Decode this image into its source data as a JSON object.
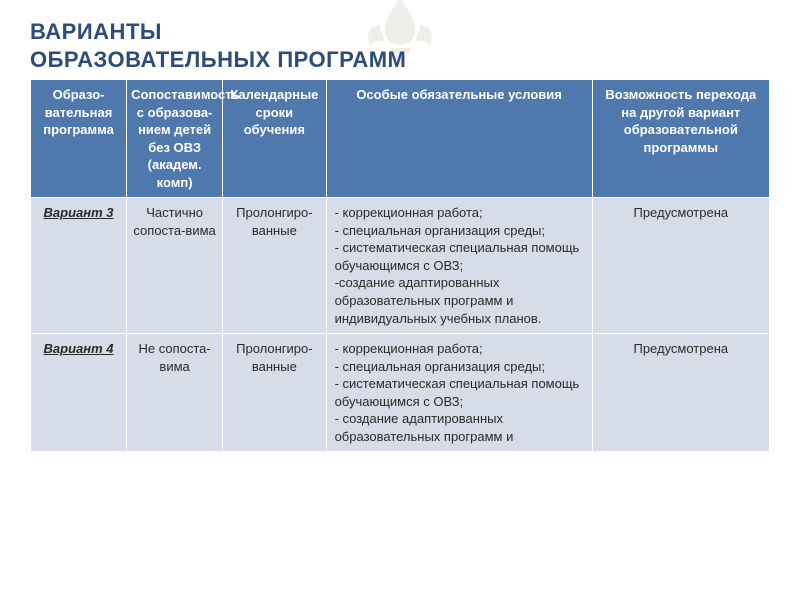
{
  "title_line1": "ВАРИАНТЫ",
  "title_line2": "ОБРАЗОВАТЕЛЬНЫХ ПРОГРАММ",
  "title_color": "#2b4d78",
  "table": {
    "header_bg": "#4f78ad",
    "header_text_color": "#ffffff",
    "body_bg": "#d6dde8",
    "border_color": "#ffffff",
    "col_widths_pct": [
      13,
      13,
      14,
      36,
      24
    ],
    "columns": [
      "Образо-вательная программа",
      "Сопоставимость с образова-нием детей без ОВЗ (академ. комп)",
      "Календарные сроки обучения",
      "Особые обязательные условия",
      "Возможность перехода на другой вариант образовательной программы"
    ],
    "rows": [
      {
        "label": "Вариант 3",
        "comparability": "Частично сопоста-вима",
        "terms": "Пролонгиро-ванные",
        "conditions": [
          "- коррекционная работа;",
          "- специальная организация среды;",
          "- систематическая специальная помощь обучающимся с ОВЗ;",
          "-создание адаптированных образовательных программ и индивидуальных учебных планов."
        ],
        "transition": "Предусмотрена"
      },
      {
        "label": "Вариант 4",
        "comparability": "Не сопоста-вима",
        "terms": "Пролонгиро-ванные",
        "conditions": [
          "- коррекционная работа;",
          "- специальная организация среды;",
          "- систематическая специальная помощь обучающимся с ОВЗ;",
          "- создание адаптированных образовательных программ и"
        ],
        "transition": "Предусмотрена"
      }
    ]
  }
}
